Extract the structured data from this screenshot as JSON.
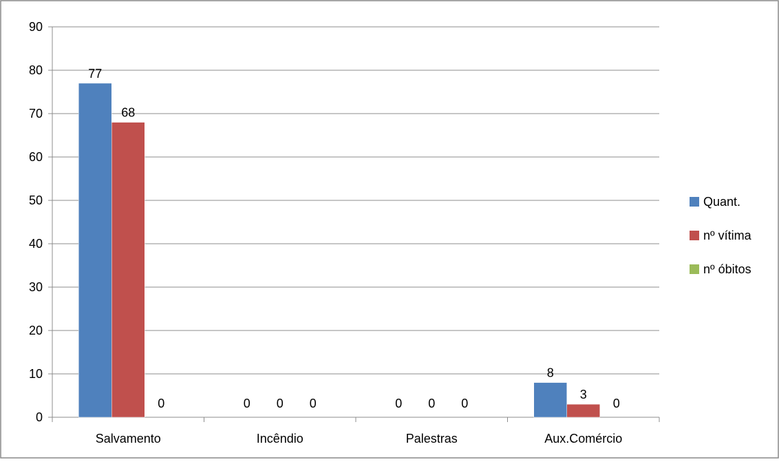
{
  "chart_data": {
    "type": "bar",
    "categories": [
      "Salvamento",
      "Incêndio",
      "Palestras",
      "Aux.Comércio"
    ],
    "series": [
      {
        "name": "Quant.",
        "values": [
          77,
          0,
          0,
          8
        ],
        "color": "#4f81bd"
      },
      {
        "name": "nº vítima",
        "values": [
          68,
          0,
          0,
          3
        ],
        "color": "#c0504d"
      },
      {
        "name": "nº óbitos",
        "values": [
          0,
          0,
          0,
          0
        ],
        "color": "#9bbb59"
      }
    ],
    "y_ticks": [
      "0",
      "10",
      "20",
      "30",
      "40",
      "50",
      "60",
      "70",
      "80",
      "90"
    ],
    "ylim": [
      0,
      90
    ],
    "grid": true,
    "legend_position": "right",
    "data_labels": true
  }
}
